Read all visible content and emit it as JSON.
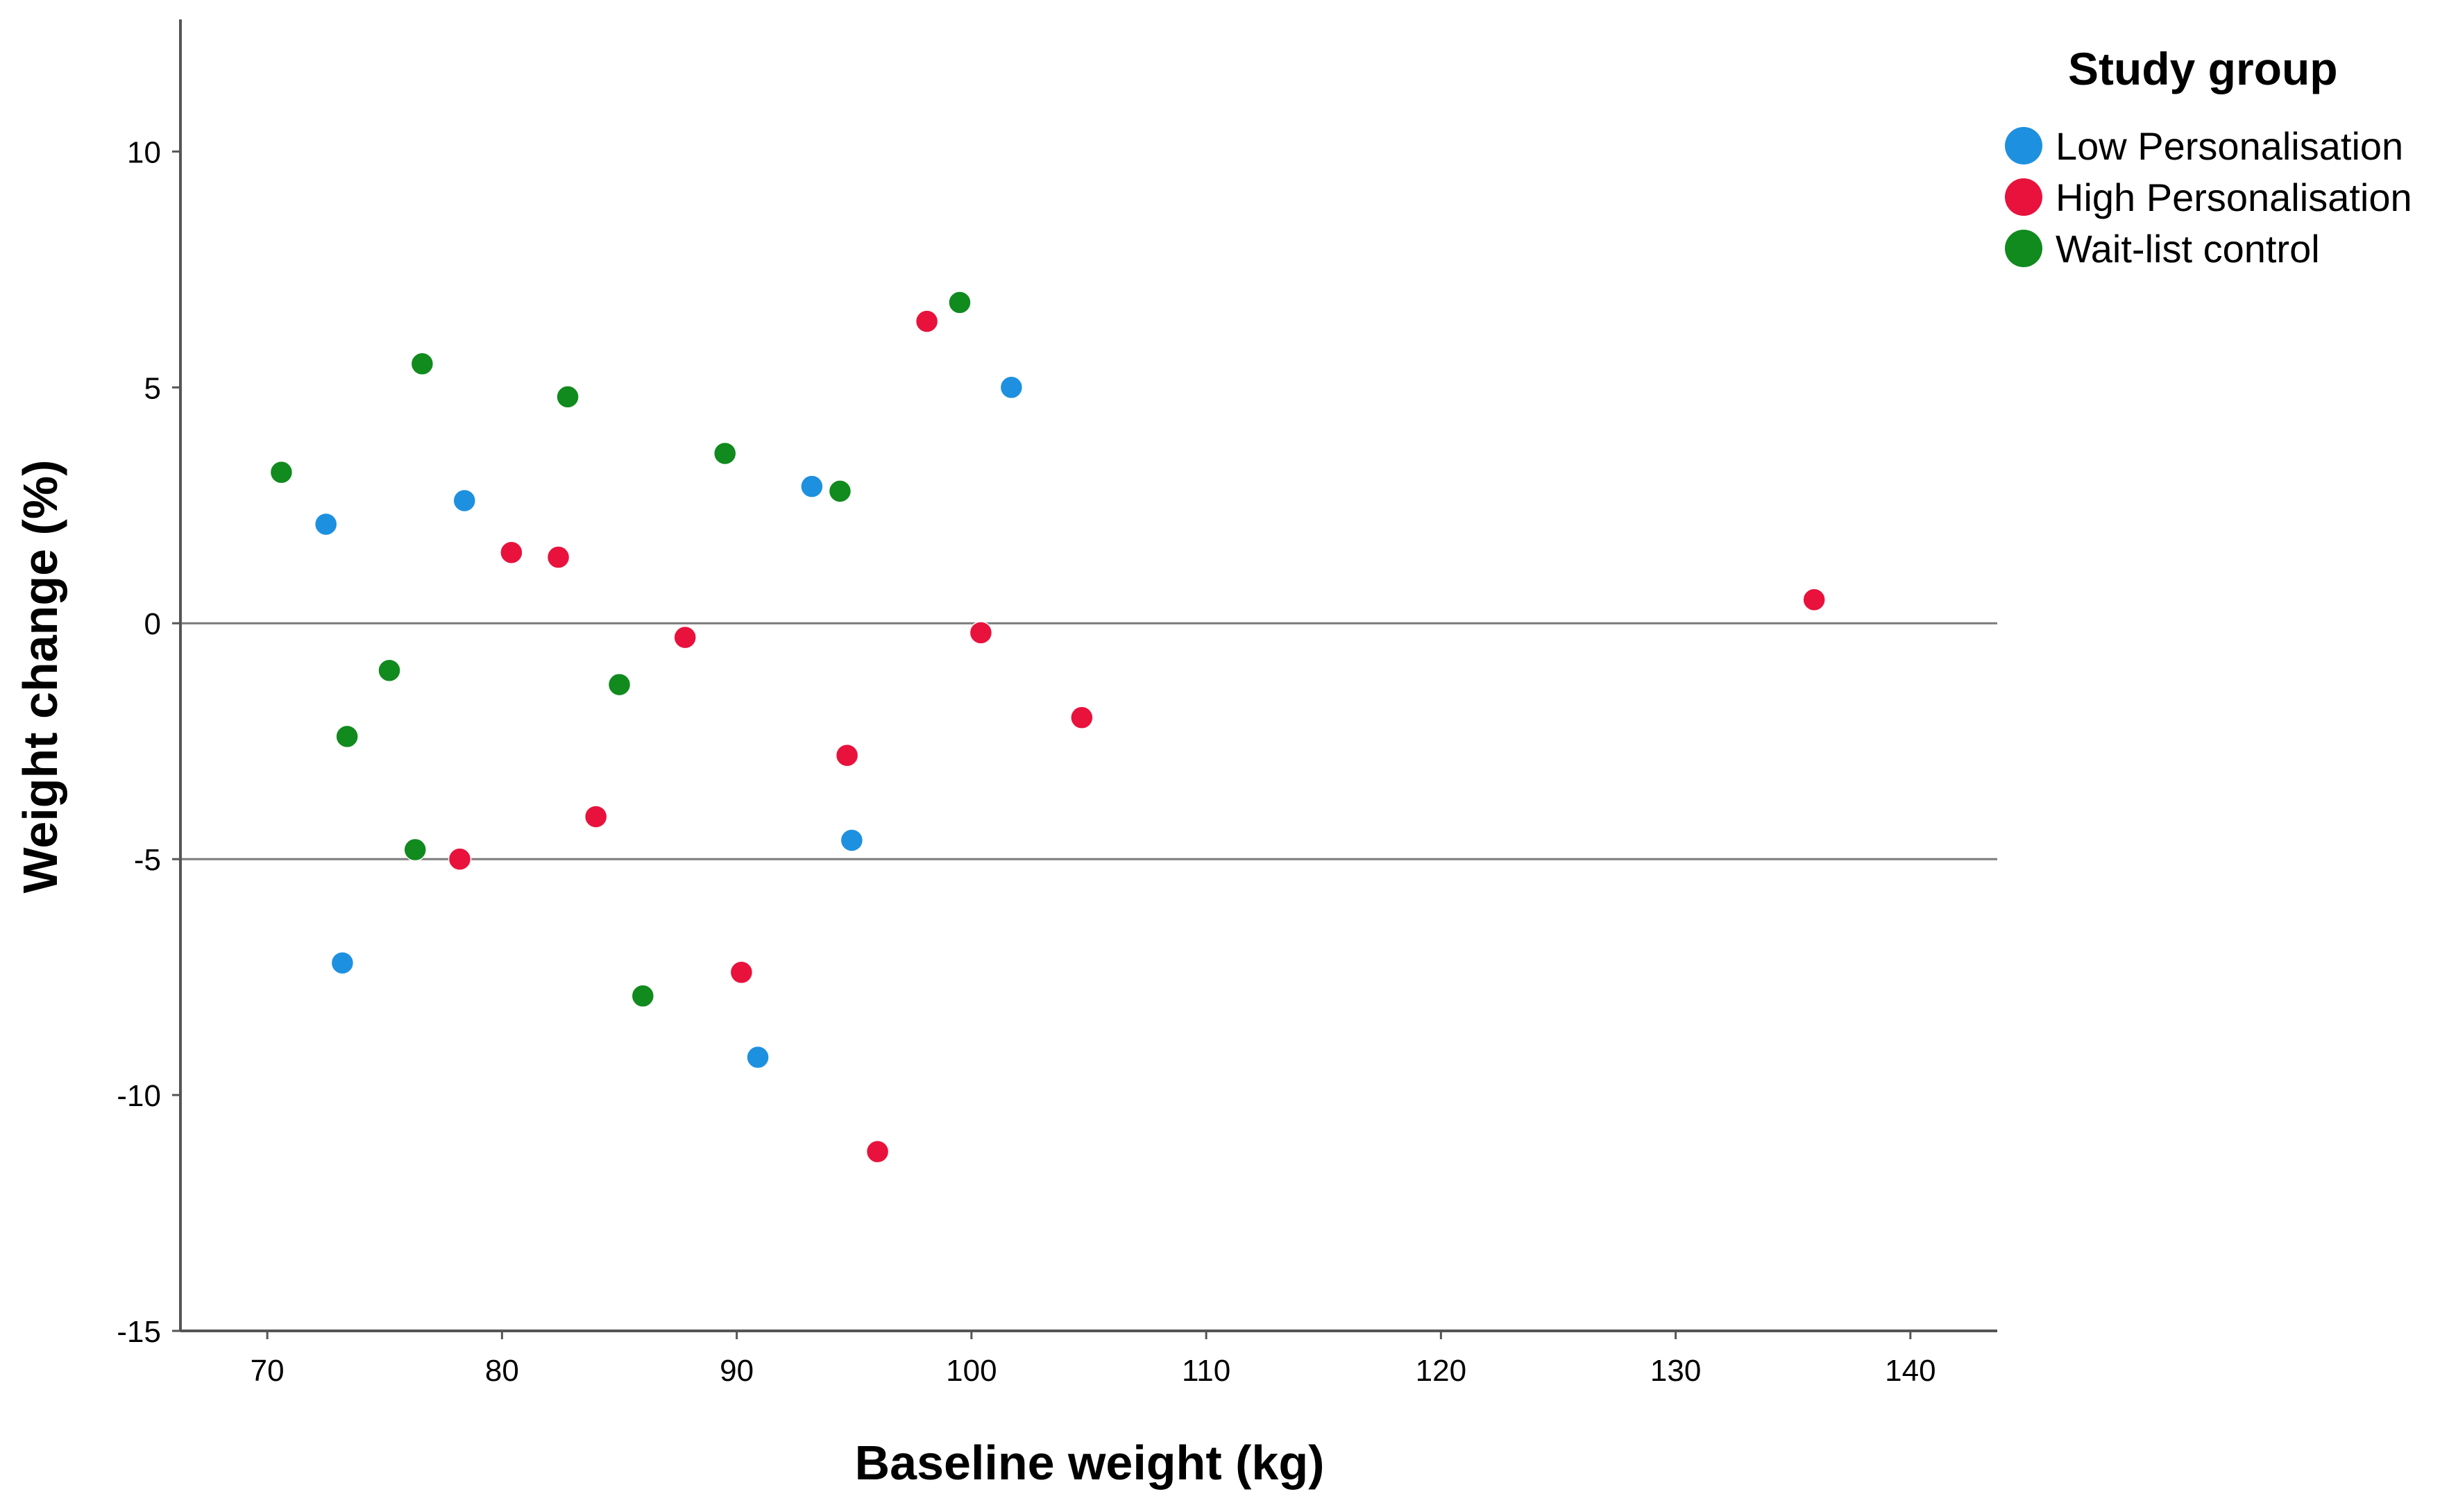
{
  "chart_data": {
    "type": "scatter",
    "xlabel": "Baseline weight (kg)",
    "ylabel": "Weight change (%)",
    "xlim": [
      66.3,
      143.7
    ],
    "ylim": [
      -15,
      12.8
    ],
    "xticks": [
      70,
      80,
      90,
      100,
      110,
      120,
      130,
      140
    ],
    "yticks": [
      -15,
      -10,
      -5,
      0,
      5,
      10
    ],
    "reference_lines_y": [
      0,
      -5
    ],
    "grid": false,
    "legend": {
      "title": "Study group",
      "position": "top-right"
    },
    "series": [
      {
        "name": "Low Personalisation",
        "color": "#1e90e0",
        "points": [
          {
            "x": 72.5,
            "y": 2.1
          },
          {
            "x": 78.4,
            "y": 2.6
          },
          {
            "x": 73.2,
            "y": -7.2
          },
          {
            "x": 93.2,
            "y": 2.9
          },
          {
            "x": 101.7,
            "y": 5.0
          },
          {
            "x": 94.9,
            "y": -4.6
          },
          {
            "x": 90.9,
            "y": -9.2
          }
        ]
      },
      {
        "name": "High Personalisation",
        "color": "#e8123c",
        "points": [
          {
            "x": 80.4,
            "y": 1.5
          },
          {
            "x": 82.4,
            "y": 1.4
          },
          {
            "x": 84.0,
            "y": -4.1
          },
          {
            "x": 78.2,
            "y": -5.0
          },
          {
            "x": 87.8,
            "y": -0.3
          },
          {
            "x": 90.2,
            "y": -7.4
          },
          {
            "x": 94.7,
            "y": -2.8
          },
          {
            "x": 96.0,
            "y": -11.2
          },
          {
            "x": 98.1,
            "y": 6.4
          },
          {
            "x": 100.4,
            "y": -0.2
          },
          {
            "x": 104.7,
            "y": -2.0
          },
          {
            "x": 135.9,
            "y": 0.5
          }
        ]
      },
      {
        "name": "Wait-list control",
        "color": "#118a1e",
        "points": [
          {
            "x": 70.6,
            "y": 3.2
          },
          {
            "x": 76.6,
            "y": 5.5
          },
          {
            "x": 75.2,
            "y": -1.0
          },
          {
            "x": 73.4,
            "y": -2.4
          },
          {
            "x": 76.3,
            "y": -4.8
          },
          {
            "x": 82.8,
            "y": 4.8
          },
          {
            "x": 85.0,
            "y": -1.3
          },
          {
            "x": 86.0,
            "y": -7.9
          },
          {
            "x": 89.5,
            "y": 3.6
          },
          {
            "x": 94.4,
            "y": 2.8
          },
          {
            "x": 99.5,
            "y": 6.8
          }
        ]
      }
    ]
  }
}
